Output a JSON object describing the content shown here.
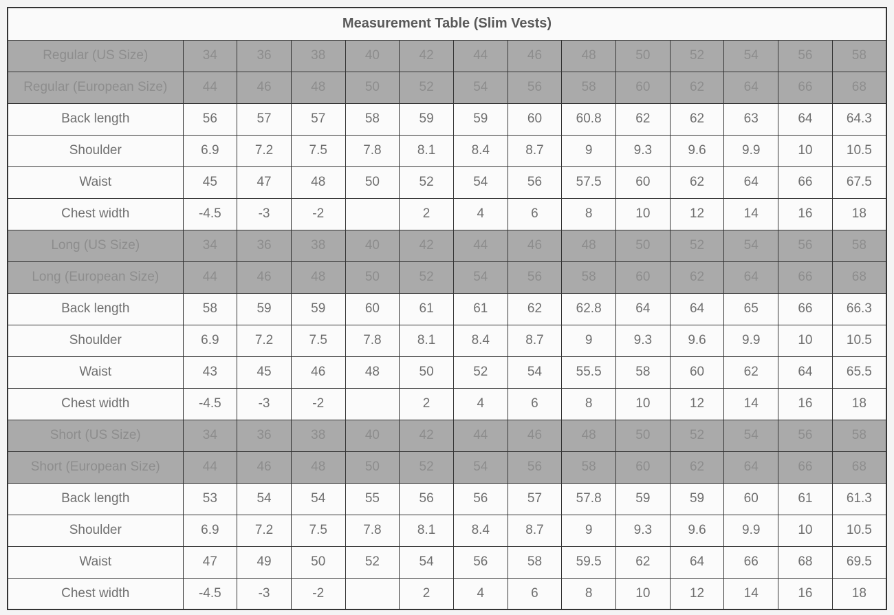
{
  "chart_data": {
    "type": "table",
    "title": "Measurement Table (Slim Vests)",
    "value_columns": 13,
    "sections": [
      {
        "name": "Regular",
        "rows": [
          {
            "label": "Regular (US Size)",
            "kind": "size",
            "values": [
              "34",
              "36",
              "38",
              "40",
              "42",
              "44",
              "46",
              "48",
              "50",
              "52",
              "54",
              "56",
              "58"
            ]
          },
          {
            "label": "Regular (European Size)",
            "kind": "size",
            "values": [
              "44",
              "46",
              "48",
              "50",
              "52",
              "54",
              "56",
              "58",
              "60",
              "62",
              "64",
              "66",
              "68"
            ]
          },
          {
            "label": "Back length",
            "kind": "measure",
            "values": [
              "56",
              "57",
              "57",
              "58",
              "59",
              "59",
              "60",
              "60.8",
              "62",
              "62",
              "63",
              "64",
              "64.3"
            ]
          },
          {
            "label": "Shoulder",
            "kind": "measure",
            "values": [
              "6.9",
              "7.2",
              "7.5",
              "7.8",
              "8.1",
              "8.4",
              "8.7",
              "9",
              "9.3",
              "9.6",
              "9.9",
              "10",
              "10.5"
            ]
          },
          {
            "label": "Waist",
            "kind": "measure",
            "values": [
              "45",
              "47",
              "48",
              "50",
              "52",
              "54",
              "56",
              "57.5",
              "60",
              "62",
              "64",
              "66",
              "67.5"
            ]
          },
          {
            "label": "Chest width",
            "kind": "measure",
            "values": [
              "-4.5",
              "-3",
              "-2",
              "",
              "2",
              "4",
              "6",
              "8",
              "10",
              "12",
              "14",
              "16",
              "18"
            ]
          }
        ]
      },
      {
        "name": "Long",
        "rows": [
          {
            "label": "Long (US Size)",
            "kind": "size",
            "values": [
              "34",
              "36",
              "38",
              "40",
              "42",
              "44",
              "46",
              "48",
              "50",
              "52",
              "54",
              "56",
              "58"
            ]
          },
          {
            "label": "Long (European Size)",
            "kind": "size",
            "values": [
              "44",
              "46",
              "48",
              "50",
              "52",
              "54",
              "56",
              "58",
              "60",
              "62",
              "64",
              "66",
              "68"
            ]
          },
          {
            "label": "Back length",
            "kind": "measure",
            "values": [
              "58",
              "59",
              "59",
              "60",
              "61",
              "61",
              "62",
              "62.8",
              "64",
              "64",
              "65",
              "66",
              "66.3"
            ]
          },
          {
            "label": "Shoulder",
            "kind": "measure",
            "values": [
              "6.9",
              "7.2",
              "7.5",
              "7.8",
              "8.1",
              "8.4",
              "8.7",
              "9",
              "9.3",
              "9.6",
              "9.9",
              "10",
              "10.5"
            ]
          },
          {
            "label": "Waist",
            "kind": "measure",
            "values": [
              "43",
              "45",
              "46",
              "48",
              "50",
              "52",
              "54",
              "55.5",
              "58",
              "60",
              "62",
              "64",
              "65.5"
            ]
          },
          {
            "label": "Chest width",
            "kind": "measure",
            "values": [
              "-4.5",
              "-3",
              "-2",
              "",
              "2",
              "4",
              "6",
              "8",
              "10",
              "12",
              "14",
              "16",
              "18"
            ]
          }
        ]
      },
      {
        "name": "Short",
        "rows": [
          {
            "label": "Short (US Size)",
            "kind": "size",
            "values": [
              "34",
              "36",
              "38",
              "40",
              "42",
              "44",
              "46",
              "48",
              "50",
              "52",
              "54",
              "56",
              "58"
            ]
          },
          {
            "label": "Short (European Size)",
            "kind": "size",
            "values": [
              "44",
              "46",
              "48",
              "50",
              "52",
              "54",
              "56",
              "58",
              "60",
              "62",
              "64",
              "66",
              "68"
            ]
          },
          {
            "label": "Back length",
            "kind": "measure",
            "values": [
              "53",
              "54",
              "54",
              "55",
              "56",
              "56",
              "57",
              "57.8",
              "59",
              "59",
              "60",
              "61",
              "61.3"
            ]
          },
          {
            "label": "Shoulder",
            "kind": "measure",
            "values": [
              "6.9",
              "7.2",
              "7.5",
              "7.8",
              "8.1",
              "8.4",
              "8.7",
              "9",
              "9.3",
              "9.6",
              "9.9",
              "10",
              "10.5"
            ]
          },
          {
            "label": "Waist",
            "kind": "measure",
            "values": [
              "47",
              "49",
              "50",
              "52",
              "54",
              "56",
              "58",
              "59.5",
              "62",
              "64",
              "66",
              "68",
              "69.5"
            ]
          },
          {
            "label": "Chest width",
            "kind": "measure",
            "values": [
              "-4.5",
              "-3",
              "-2",
              "",
              "2",
              "4",
              "6",
              "8",
              "10",
              "12",
              "14",
              "16",
              "18"
            ]
          }
        ]
      }
    ]
  },
  "colors": {
    "page_background": "#f4f4f4",
    "title_background": "#fafafa",
    "title_text": "#595959",
    "size_row_background": "#aaaaaa",
    "size_row_text": "#8d8d8d",
    "data_row_background": "#fbfbfb",
    "data_row_text": "#6f6f6f",
    "border": "#333333"
  }
}
